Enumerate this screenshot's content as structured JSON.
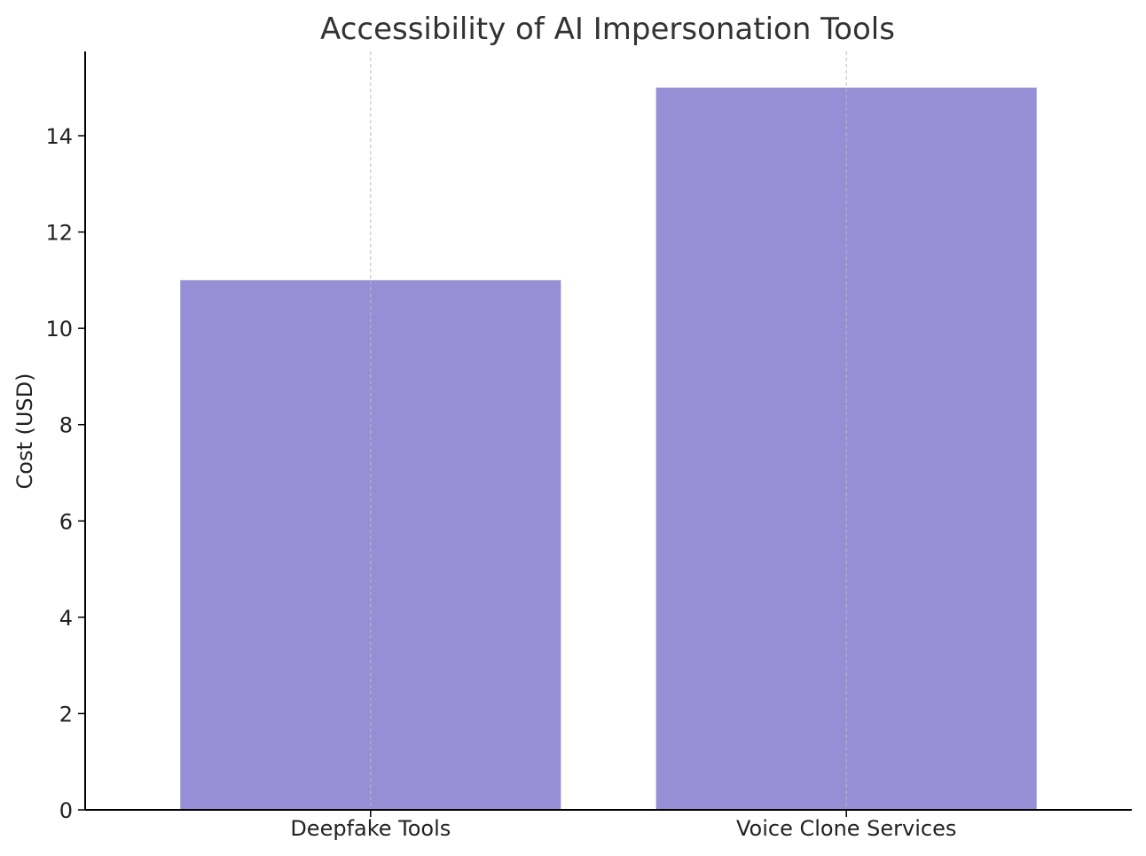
{
  "chart_data": {
    "type": "bar",
    "title": "Accessibility of AI Impersonation Tools",
    "xlabel": "",
    "ylabel": "Cost (USD)",
    "categories": [
      "Deepfake Tools",
      "Voice Clone Services"
    ],
    "values": [
      11,
      15
    ],
    "ylim": [
      0,
      15.75
    ],
    "yticks": [
      0,
      2,
      4,
      6,
      8,
      10,
      12,
      14
    ],
    "grid": "x-axis vertical dashed lines",
    "legend": "none",
    "colors": {
      "bar": "#978fd5"
    }
  }
}
